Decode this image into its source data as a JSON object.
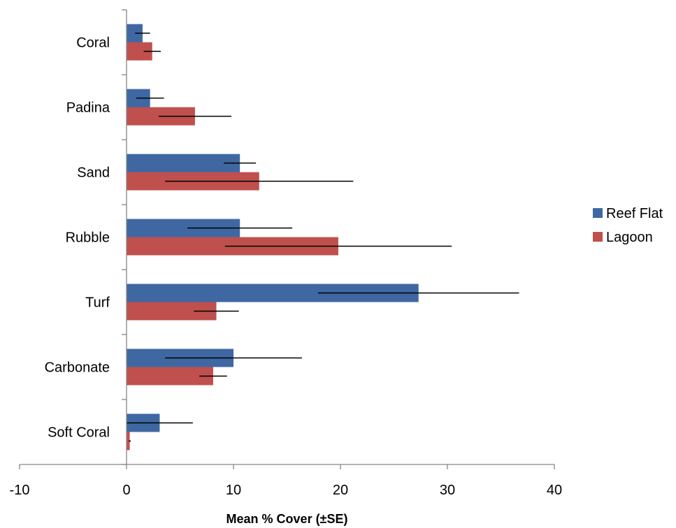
{
  "chart_data": {
    "type": "bar",
    "orientation": "horizontal",
    "categories": [
      "Coral",
      "Padina",
      "Sand",
      "Rubble",
      "Turf",
      "Carbonate",
      "Soft Coral"
    ],
    "series": [
      {
        "name": "Reef Flat",
        "color": "#4472C4",
        "values": [
          1.5,
          2.2,
          10.6,
          10.6,
          27.3,
          10.0,
          3.1
        ],
        "errors": [
          0.7,
          1.3,
          1.5,
          4.9,
          9.4,
          6.4,
          3.1
        ]
      },
      {
        "name": "Lagoon",
        "color": "#C0504D",
        "values": [
          2.4,
          6.4,
          12.4,
          19.8,
          8.4,
          8.1,
          0.3
        ],
        "errors": [
          0.8,
          3.4,
          8.8,
          10.6,
          2.1,
          1.3,
          0.1
        ]
      }
    ],
    "series_colors_display": {
      "reef_flat": "#3F68A2",
      "lagoon": "#C0504D"
    },
    "xlim": [
      -10,
      40
    ],
    "xticks": [
      "-10",
      "0",
      "10",
      "20",
      "30",
      "40"
    ],
    "xlabel": "Mean % Cover (±SE)",
    "ylabel": "",
    "title": "",
    "grid": false,
    "legend_position": "right",
    "error_bars": "standard error"
  }
}
